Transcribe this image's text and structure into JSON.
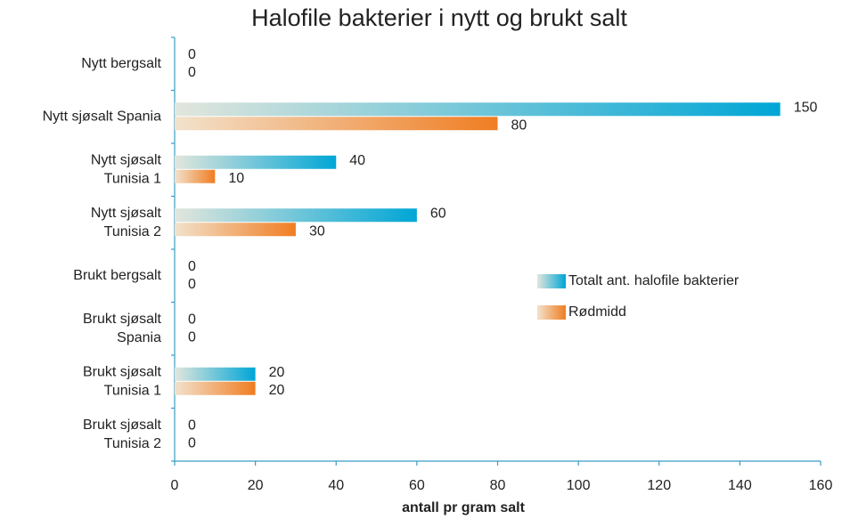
{
  "chart_data": {
    "type": "bar",
    "orientation": "horizontal",
    "title": "Halofile bakterier i nytt og brukt salt",
    "x_label": "antall pr gram salt",
    "categories": [
      [
        "Nytt bergsalt"
      ],
      [
        "Nytt sjøsalt  Spania"
      ],
      [
        "Nytt sjøsalt",
        "Tunisia 1"
      ],
      [
        "Nytt sjøsalt",
        "Tunisia 2"
      ],
      [
        "Brukt bergsalt"
      ],
      [
        "Brukt sjøsalt",
        "Spania"
      ],
      [
        "Brukt sjøsalt",
        "Tunisia 1"
      ],
      [
        "Brukt sjøsalt",
        "Tunisia 2"
      ]
    ],
    "series": [
      {
        "name": "Totalt ant. halofile bakterier",
        "color": "#00a6d6",
        "values": [
          0,
          150,
          40,
          60,
          0,
          0,
          20,
          0
        ]
      },
      {
        "name": "Rødmidd",
        "color": "#f07d22",
        "values": [
          0,
          80,
          10,
          30,
          0,
          0,
          20,
          0
        ]
      }
    ],
    "xlim": [
      0,
      160
    ],
    "xticks": [
      0,
      20,
      40,
      60,
      80,
      100,
      120,
      140,
      160
    ],
    "legend": "right"
  }
}
